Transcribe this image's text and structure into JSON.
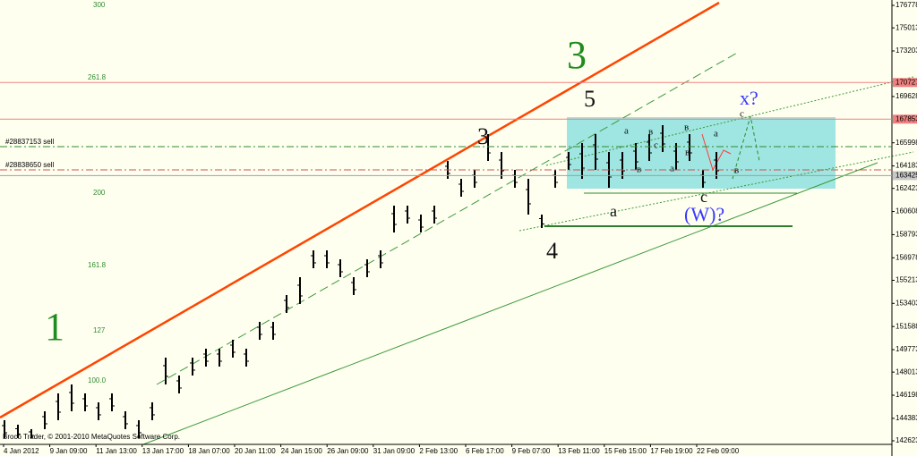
{
  "chart_data": {
    "type": "hl-bars",
    "color": "#000000",
    "ylim": [
      142623,
      177199
    ],
    "yticks": [
      176778,
      175013,
      173203,
      169628,
      165998,
      164183,
      162423,
      160608,
      158793,
      156978,
      155213,
      153403,
      151588,
      149773,
      148013,
      146198,
      144383,
      142623
    ],
    "high": [
      144238,
      143887,
      143536,
      144939,
      146342,
      147043,
      146342,
      145640,
      146342,
      144939,
      144238,
      145640,
      149147,
      147744,
      149147,
      149848,
      149848,
      150549,
      149848,
      151952,
      151952,
      154056,
      155458,
      157562,
      157562,
      156861,
      155458,
      156861,
      157562,
      161069,
      161069,
      160368,
      161069,
      164575,
      163173,
      163874,
      166679,
      165277,
      163874,
      163173,
      160368,
      163874,
      165277,
      165978,
      166679,
      165277,
      165277,
      165978,
      166679,
      167381,
      165978,
      166679,
      163874,
      165277
    ],
    "low": [
      142835,
      142835,
      142835,
      143536,
      144238,
      144939,
      144939,
      144238,
      144939,
      143536,
      142835,
      144238,
      147043,
      146342,
      147744,
      148445,
      148445,
      149147,
      148445,
      150549,
      150549,
      152653,
      153355,
      156160,
      156160,
      155458,
      154056,
      155458,
      156160,
      158965,
      159666,
      158965,
      159666,
      163173,
      161770,
      162472,
      164575,
      163173,
      162472,
      160368,
      159316,
      162472,
      163874,
      163173,
      163874,
      162472,
      163173,
      163874,
      164575,
      165277,
      163874,
      164575,
      162472,
      163173
    ],
    "x_labels": [
      "4 Jan 2012",
      "9 Jan 09:00",
      "11 Jan 13:00",
      "13 Jan 17:00",
      "18 Jan 07:00",
      "20 Jan 11:00",
      "24 Jan 15:00",
      "26 Jan 09:00",
      "31 Jan 09:00",
      "2 Feb 13:00",
      "6 Feb 17:00",
      "9 Feb 07:00",
      "13 Feb 11:00",
      "15 Feb 15:00",
      "17 Feb 19:00",
      "22 Feb 09:00"
    ],
    "price_lines": [
      {
        "value": 170727,
        "color": "#f08080",
        "label_bg": "#f08080"
      },
      {
        "value": 167853,
        "color": "#f08080",
        "label_bg": "#f08080"
      },
      {
        "value": 163425,
        "color": "#a0a0a0",
        "label_bg": "#c8c8c8"
      }
    ],
    "orders": [
      {
        "label": "#28837153 sell",
        "value": 165697,
        "color": "#2e8b2e"
      },
      {
        "label": "#28838650 sell",
        "value": 163874,
        "color": "#d05050"
      }
    ],
    "fib_labels": [
      "300",
      "261.8",
      "200",
      "161.8",
      "127",
      "100.0"
    ],
    "waves": [
      "1",
      "3",
      "3",
      "5",
      "4",
      "a",
      "c",
      "(W)?",
      "x?",
      "в",
      "c",
      "a",
      "в",
      "a",
      "в",
      "в",
      "a",
      "c",
      "в"
    ],
    "copyright": "Broco Trader, © 2001-2010 MetaQuotes Software Corp."
  }
}
